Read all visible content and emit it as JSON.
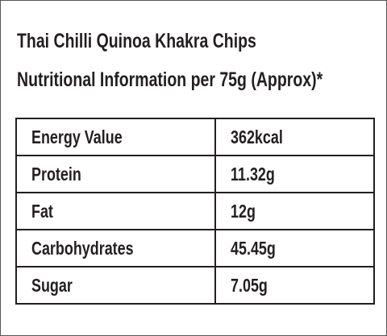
{
  "header": {
    "title": "Thai Chilli Quinoa Khakra Chips",
    "subtitle": "Nutritional Information per 75g (Approx)*"
  },
  "table": {
    "rows": [
      [
        "Energy Value",
        "362kcal"
      ],
      [
        "Protein",
        "11.32g"
      ],
      [
        "Fat",
        "12g"
      ],
      [
        "Carbohydrates",
        "45.45g"
      ],
      [
        "Sugar",
        "7.05g"
      ]
    ]
  }
}
